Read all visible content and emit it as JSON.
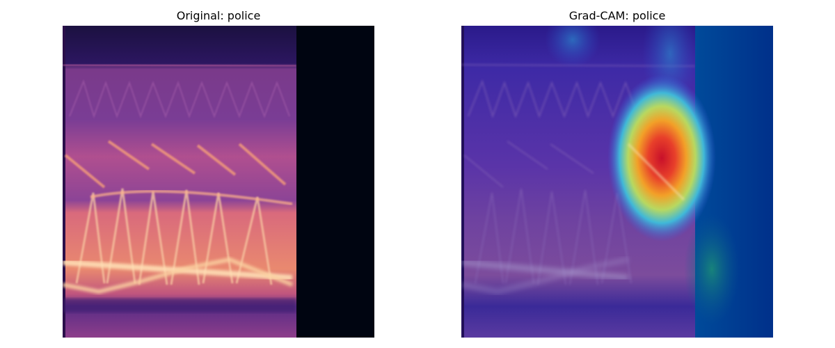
{
  "panels": [
    {
      "title": "Original: police",
      "image": "spectrogram",
      "colormap": "magma",
      "padding_color": "#000511"
    },
    {
      "title": "Grad-CAM: police",
      "image": "gradcam-heatmap-overlay",
      "colormap": "jet",
      "padding_color": "#003c8c"
    }
  ]
}
